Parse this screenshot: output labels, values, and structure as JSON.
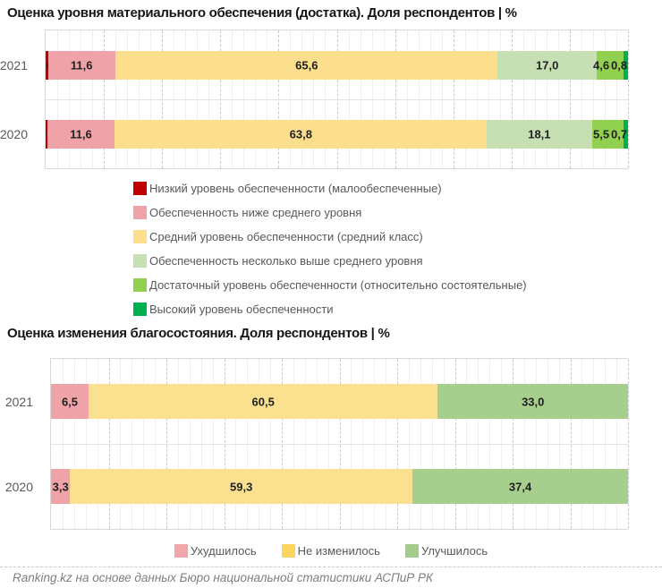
{
  "footer": {
    "text": "Ranking.kz на основе данных Бюро национальной статистики АСПиР РК"
  },
  "chart_data": [
    {
      "type": "bar",
      "orientation": "horizontal",
      "stacked": true,
      "title": "Оценка уровня материального обеспечения (достатка). Доля респондентов | %",
      "categories": [
        "2021",
        "2020"
      ],
      "series": [
        {
          "name": "Низкий уровень обеспеченности (малообеспеченные)",
          "color": "#C00000",
          "values": [
            0.4,
            0.3
          ]
        },
        {
          "name": "Обеспеченность ниже среднего уровня",
          "color": "#EFA3A9",
          "values": [
            11.6,
            11.6
          ]
        },
        {
          "name": "Средний уровень обеспеченности (средний класс)",
          "color": "#FBDF8C",
          "values": [
            65.6,
            63.8
          ]
        },
        {
          "name": "Обеспеченность несколько выше среднего уровня",
          "color": "#C6E0B4",
          "values": [
            17.0,
            18.1
          ]
        },
        {
          "name": "Достаточный уровень обеспеченности (относительно состоятельные)",
          "color": "#92D050",
          "values": [
            4.6,
            5.5
          ]
        },
        {
          "name": "Высокий уровень обеспеченности",
          "color": "#00B050",
          "values": [
            0.8,
            0.7
          ]
        }
      ],
      "xlim": [
        0,
        100
      ],
      "grid": {
        "minor_step": 2,
        "major_step": 10
      },
      "legend_position": "bottom-left",
      "value_labels": "all-segments",
      "decimal_separator": ","
    },
    {
      "type": "bar",
      "orientation": "horizontal",
      "stacked": true,
      "title": "Оценка изменения благосостояния. Доля респондентов | %",
      "categories": [
        "2021",
        "2020"
      ],
      "series": [
        {
          "name": "Ухудшилось",
          "color": "#EFA3A9",
          "legend_color": "#F0A6AB",
          "values": [
            6.5,
            3.3
          ]
        },
        {
          "name": "Не изменилось",
          "color": "#FBE18F",
          "legend_color": "#FBD55E",
          "values": [
            60.5,
            59.3
          ]
        },
        {
          "name": "Улучшилось",
          "color": "#A6CF8D",
          "legend_color": "#A4CD8B",
          "values": [
            33.0,
            37.4
          ]
        }
      ],
      "xlim": [
        0,
        100
      ],
      "grid": {
        "minor_step": 2,
        "major_step": 10
      },
      "legend_position": "bottom-center",
      "value_labels": "all-segments",
      "decimal_separator": ","
    }
  ]
}
